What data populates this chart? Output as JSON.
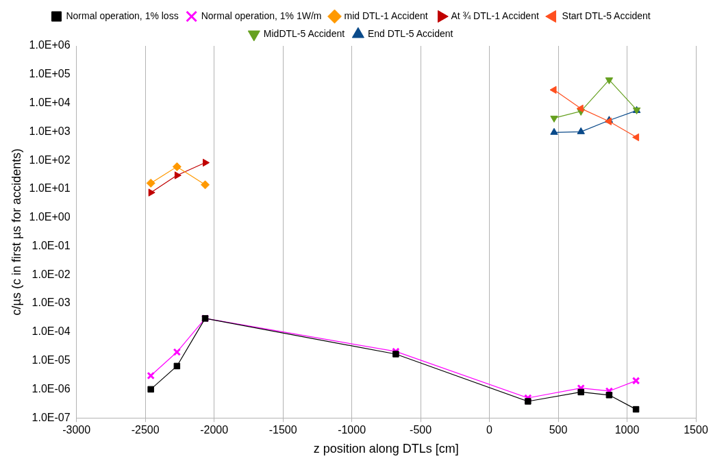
{
  "chart_data": {
    "type": "line",
    "xlabel": "z position along DTLs [cm]",
    "ylabel": "c/µs (c in first µs for accidents)",
    "log": "y",
    "grid": "x",
    "legend": "top",
    "xlim": [
      -3000,
      1500
    ],
    "xticks": [
      -3000,
      -2500,
      -2000,
      -1500,
      -1000,
      -500,
      0,
      500,
      1000,
      1500
    ],
    "ylim": [
      1e-07,
      1000000.0
    ],
    "yticks": [
      {
        "value": 1e-07,
        "label": "1.0E-07"
      },
      {
        "value": 1e-06,
        "label": "1.0E-06"
      },
      {
        "value": 1e-05,
        "label": "1.0E-05"
      },
      {
        "value": 0.0001,
        "label": "1.0E-04"
      },
      {
        "value": 0.001,
        "label": "1.0E-03"
      },
      {
        "value": 0.01,
        "label": "1.0E-02"
      },
      {
        "value": 0.1,
        "label": "1.0E-01"
      },
      {
        "value": 1,
        "label": "1.0E+00"
      },
      {
        "value": 10,
        "label": "1.0E+01"
      },
      {
        "value": 100,
        "label": "1.0E+02"
      },
      {
        "value": 1000,
        "label": "1.0E+03"
      },
      {
        "value": 10000,
        "label": "1.0E+04"
      },
      {
        "value": 100000,
        "label": "1.0E+05"
      },
      {
        "value": 1000000,
        "label": "1.0E+06"
      }
    ],
    "series": [
      {
        "name": "Normal operation, 1% loss",
        "color": "#000000",
        "marker": "square",
        "x": [
          -2460,
          -2270,
          -2065,
          -680,
          280,
          665,
          870,
          1065
        ],
        "values": [
          1e-06,
          6.5e-06,
          0.0003,
          1.7e-05,
          3.8e-07,
          8e-07,
          6.3e-07,
          2e-07
        ]
      },
      {
        "name": "Normal operation, 1% 1W/m",
        "color": "#ff00ff",
        "marker": "cross",
        "x": [
          -2460,
          -2270,
          -2065,
          -680,
          280,
          665,
          870,
          1065
        ],
        "values": [
          3e-06,
          2e-05,
          0.0003,
          2.1e-05,
          5e-07,
          1.1e-06,
          8.7e-07,
          2e-06
        ]
      },
      {
        "name": "mid DTL-1 Accident",
        "color": "#ff9900",
        "marker": "diamond",
        "x": [
          -2460,
          -2270,
          -2065
        ],
        "values": [
          16,
          60,
          14
        ]
      },
      {
        "name": "At ¾ DTL-1 Accident",
        "color": "#c00000",
        "marker": "triangle-right",
        "x": [
          -2460,
          -2270,
          -2065
        ],
        "values": [
          7.5,
          30,
          83
        ]
      },
      {
        "name": "Start DTL-5 Accident",
        "color": "#ff4f1f",
        "marker": "triangle-left",
        "x": [
          470,
          665,
          870,
          1070
        ],
        "values": [
          29000,
          6500,
          2300,
          640
        ]
      },
      {
        "name": "MidDTL-5 Accident",
        "color": "#66a020",
        "marker": "triangle-down",
        "x": [
          470,
          665,
          870,
          1070
        ],
        "values": [
          3000,
          5200,
          65000,
          5800
        ]
      },
      {
        "name": "End DTL-5 Accident",
        "color": "#0a4a8a",
        "marker": "triangle",
        "x": [
          470,
          665,
          870,
          1070
        ],
        "values": [
          950,
          1000,
          2500,
          5500
        ]
      }
    ]
  }
}
